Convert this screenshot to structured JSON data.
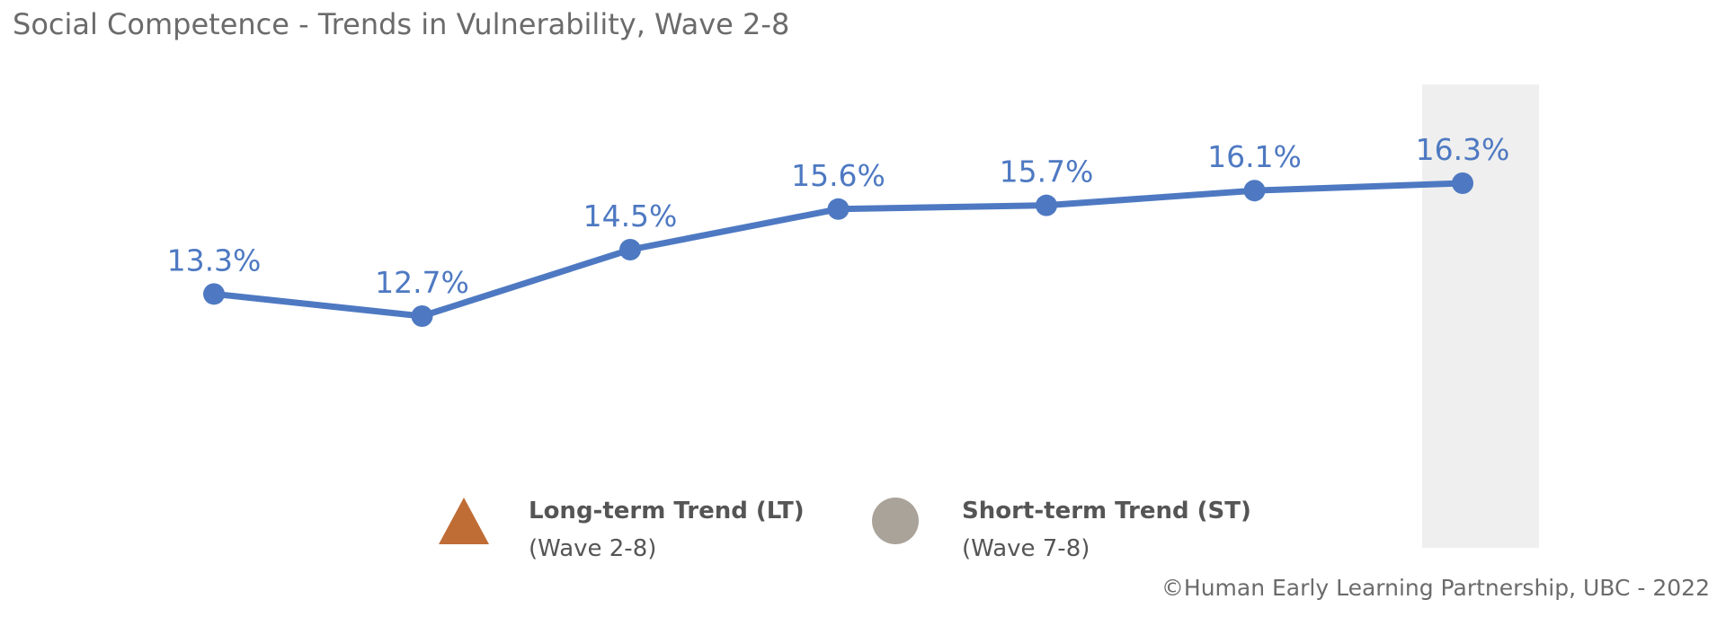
{
  "header": {
    "title": "Social Competence - Trends in Vulnerability, Wave 2-8"
  },
  "chart_data": {
    "type": "line",
    "title": "Social Competence - Trends in Vulnerability, Wave 2-8",
    "categories": [
      "",
      "",
      "",
      "",
      "",
      "",
      ""
    ],
    "series": [
      {
        "values": [
          13.3,
          12.7,
          14.5,
          15.6,
          15.7,
          16.1,
          16.3
        ],
        "labels": [
          "13.3%",
          "12.7%",
          "14.5%",
          "15.6%",
          "15.7%",
          "16.1%",
          "16.3%"
        ],
        "color": "#4e79c2"
      }
    ],
    "highlight_index": 6,
    "highlight_color": "#efefef",
    "xlabel": "",
    "ylabel": "",
    "grid": false
  },
  "legend": {
    "long_term": {
      "title": "Long-term Trend (LT)",
      "subtitle": "(Wave 2-8)",
      "icon": "triangle-icon",
      "color": "#c06c35"
    },
    "short_term": {
      "title": "Short-term Trend (ST)",
      "subtitle": "(Wave 7-8)",
      "icon": "circle-icon",
      "color": "#aaa39a"
    }
  },
  "footer": {
    "copyright": "©Human Early Learning Partnership, UBC - 2022"
  }
}
